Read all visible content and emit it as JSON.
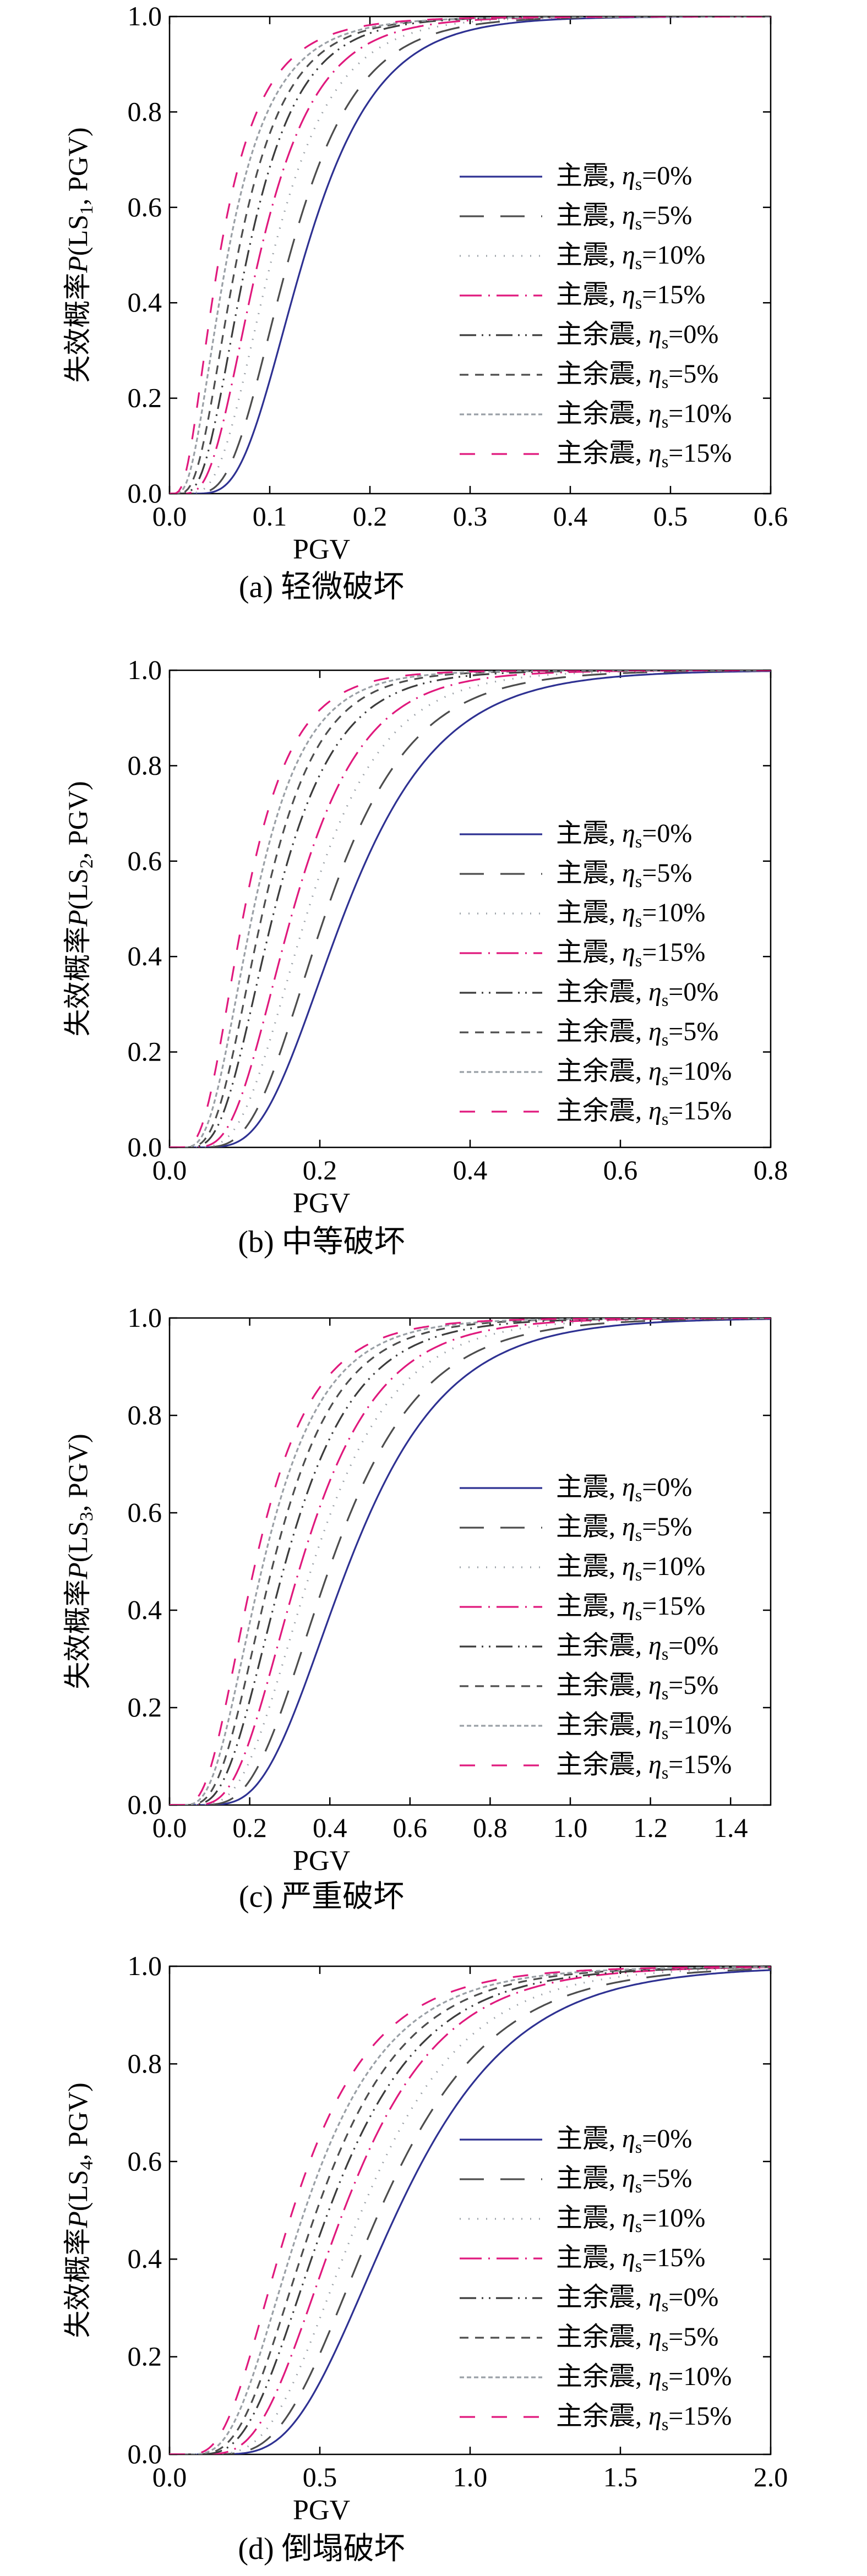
{
  "styles": [
    {
      "color": "#2e3192",
      "dash": "none"
    },
    {
      "color": "#4d4d4d",
      "dash": "44,30"
    },
    {
      "color": "#9aa0a6",
      "dash": "2,14"
    },
    {
      "color": "#e0197d",
      "dash": "40,12,3,12"
    },
    {
      "color": "#3c3c3c",
      "dash": "30,10,3,10,3,10"
    },
    {
      "color": "#4d4d4d",
      "dash": "16,12"
    },
    {
      "color": "#9aa0a6",
      "dash": "8,5"
    },
    {
      "color": "#e0197d",
      "dash": "28,30"
    }
  ],
  "legend": [
    {
      "pre": "主震, ",
      "sym": "η",
      "sub": "s",
      "post": "=0%"
    },
    {
      "pre": "主震, ",
      "sym": "η",
      "sub": "s",
      "post": "=5%"
    },
    {
      "pre": "主震, ",
      "sym": "η",
      "sub": "s",
      "post": "=10%"
    },
    {
      "pre": "主震, ",
      "sym": "η",
      "sub": "s",
      "post": "=15%"
    },
    {
      "pre": "主余震, ",
      "sym": "η",
      "sub": "s",
      "post": "=0%"
    },
    {
      "pre": "主余震, ",
      "sym": "η",
      "sub": "s",
      "post": "=5%"
    },
    {
      "pre": "主余震, ",
      "sym": "η",
      "sub": "s",
      "post": "=10%"
    },
    {
      "pre": "主余震, ",
      "sym": "η",
      "sub": "s",
      "post": "=15%"
    }
  ],
  "chart_data": [
    {
      "type": "line",
      "caption": "(a) 轻微破坏",
      "xlabel": "PGV",
      "ylabel": {
        "pre": "失效概率",
        "ital": "P",
        "mid": "(LS",
        "sub": "1",
        "post": ", PGV)"
      },
      "xlim": [
        0,
        0.6
      ],
      "ylim": [
        0,
        1.0
      ],
      "xticks": [
        "0.0",
        "0.1",
        "0.2",
        "0.3",
        "0.4",
        "0.5",
        "0.6"
      ],
      "yticks": [
        "0.0",
        "0.2",
        "0.4",
        "0.6",
        "0.8",
        "1.0"
      ],
      "series": [
        {
          "median": 0.135,
          "beta": 0.42
        },
        {
          "median": 0.12,
          "beta": 0.44
        },
        {
          "median": 0.103,
          "beta": 0.47
        },
        {
          "median": 0.09,
          "beta": 0.5
        },
        {
          "median": 0.078,
          "beta": 0.52
        },
        {
          "median": 0.068,
          "beta": 0.56
        },
        {
          "median": 0.058,
          "beta": 0.62
        },
        {
          "median": 0.05,
          "beta": 0.66
        }
      ]
    },
    {
      "type": "line",
      "caption": "(b) 中等破坏",
      "xlabel": "PGV",
      "ylabel": {
        "pre": "失效概率",
        "ital": "P",
        "mid": "(LS",
        "sub": "2",
        "post": ", PGV)"
      },
      "xlim": [
        0,
        0.8
      ],
      "ylim": [
        0,
        1.0
      ],
      "xticks": [
        "0.0",
        "0.2",
        "0.4",
        "0.6",
        "0.8"
      ],
      "yticks": [
        "0.0",
        "0.2",
        "0.4",
        "0.6",
        "0.8",
        "1.0"
      ],
      "series": [
        {
          "median": 0.235,
          "beta": 0.42
        },
        {
          "median": 0.21,
          "beta": 0.42
        },
        {
          "median": 0.185,
          "beta": 0.43
        },
        {
          "median": 0.165,
          "beta": 0.44
        },
        {
          "median": 0.14,
          "beta": 0.46
        },
        {
          "median": 0.125,
          "beta": 0.46
        },
        {
          "median": 0.112,
          "beta": 0.48
        },
        {
          "median": 0.1,
          "beta": 0.5
        }
      ]
    },
    {
      "type": "line",
      "caption": "(c) 严重破坏",
      "xlabel": "PGV",
      "ylabel": {
        "pre": "失效概率",
        "ital": "P",
        "mid": "(LS",
        "sub": "3",
        "post": ", PGV)"
      },
      "xlim": [
        0,
        1.5
      ],
      "ylim": [
        0,
        1.0
      ],
      "xticks": [
        "0.0",
        "0.2",
        "0.4",
        "0.6",
        "0.8",
        "1.0",
        "1.2",
        "1.4"
      ],
      "yticks": [
        "0.0",
        "0.2",
        "0.4",
        "0.6",
        "0.8",
        "1.0"
      ],
      "series": [
        {
          "median": 0.45,
          "beta": 0.42
        },
        {
          "median": 0.405,
          "beta": 0.43
        },
        {
          "median": 0.36,
          "beta": 0.44
        },
        {
          "median": 0.33,
          "beta": 0.45
        },
        {
          "median": 0.29,
          "beta": 0.47
        },
        {
          "median": 0.26,
          "beta": 0.48
        },
        {
          "median": 0.235,
          "beta": 0.5
        },
        {
          "median": 0.215,
          "beta": 0.52
        }
      ]
    },
    {
      "type": "line",
      "caption": "(d) 倒塌破坏",
      "xlabel": "PGV",
      "ylabel": {
        "pre": "失效概率",
        "ital": "P",
        "mid": "(LS",
        "sub": "4",
        "post": ", PGV)"
      },
      "xlim": [
        0,
        2.0
      ],
      "ylim": [
        0,
        1.0
      ],
      "xticks": [
        "0.0",
        "0.5",
        "1.0",
        "1.5",
        "2.0"
      ],
      "yticks": [
        "0.0",
        "0.2",
        "0.4",
        "0.6",
        "0.8",
        "1.0"
      ],
      "series": [
        {
          "median": 0.76,
          "beta": 0.4
        },
        {
          "median": 0.7,
          "beta": 0.41
        },
        {
          "median": 0.64,
          "beta": 0.42
        },
        {
          "median": 0.58,
          "beta": 0.43
        },
        {
          "median": 0.53,
          "beta": 0.46
        },
        {
          "median": 0.49,
          "beta": 0.47
        },
        {
          "median": 0.45,
          "beta": 0.49
        },
        {
          "median": 0.41,
          "beta": 0.51
        }
      ]
    }
  ]
}
